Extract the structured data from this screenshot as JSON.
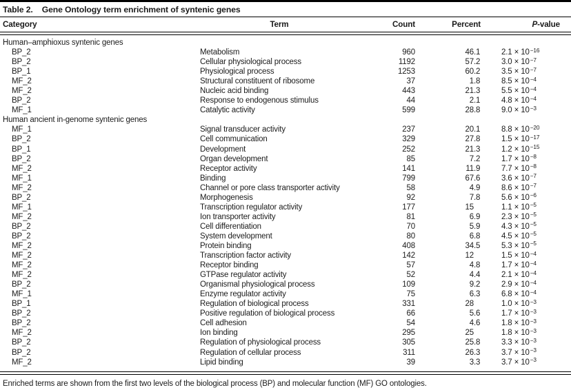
{
  "table": {
    "title_label": "Table 2.",
    "title_text": "Gene Ontology term enrichment of syntenic genes",
    "columns": {
      "category": "Category",
      "term": "Term",
      "count": "Count",
      "percent": "Percent",
      "pvalue_italic": "P",
      "pvalue_rest": "-value"
    },
    "sections": [
      {
        "header": "Human–amphioxus syntenic genes",
        "rows": [
          {
            "category": "BP_2",
            "term": "Metabolism",
            "count": "960",
            "percent": "46.1",
            "p_mant": "2.1",
            "p_exp": "−16"
          },
          {
            "category": "BP_2",
            "term": "Cellular physiological process",
            "count": "1192",
            "percent": "57.2",
            "p_mant": "3.0",
            "p_exp": "−7"
          },
          {
            "category": "BP_1",
            "term": "Physiological process",
            "count": "1253",
            "percent": "60.2",
            "p_mant": "3.5",
            "p_exp": "−7"
          },
          {
            "category": "MF_2",
            "term": "Structural constituent of ribosome",
            "count": "37",
            "percent": "1.8",
            "p_mant": "8.5",
            "p_exp": "−4"
          },
          {
            "category": "MF_2",
            "term": "Nucleic acid binding",
            "count": "443",
            "percent": "21.3",
            "p_mant": "5.5",
            "p_exp": "−4"
          },
          {
            "category": "BP_2",
            "term": "Response to endogenous stimulus",
            "count": "44",
            "percent": "2.1",
            "p_mant": "4.8",
            "p_exp": "−4"
          },
          {
            "category": "MF_1",
            "term": "Catalytic activity",
            "count": "599",
            "percent": "28.8",
            "p_mant": "9.0",
            "p_exp": "−3"
          }
        ]
      },
      {
        "header": "Human ancient in-genome syntenic genes",
        "rows": [
          {
            "category": "MF_1",
            "term": "Signal transducer activity",
            "count": "237",
            "percent": "20.1",
            "p_mant": "8.8",
            "p_exp": "−20"
          },
          {
            "category": "BP_2",
            "term": "Cell communication",
            "count": "329",
            "percent": "27.8",
            "p_mant": "1.5",
            "p_exp": "−17"
          },
          {
            "category": "BP_1",
            "term": "Development",
            "count": "252",
            "percent": "21.3",
            "p_mant": "1.2",
            "p_exp": "−15"
          },
          {
            "category": "BP_2",
            "term": "Organ development",
            "count": "85",
            "percent": "7.2",
            "p_mant": "1.7",
            "p_exp": "−8"
          },
          {
            "category": "MF_2",
            "term": "Receptor activity",
            "count": "141",
            "percent": "11.9",
            "p_mant": "7.7",
            "p_exp": "−8"
          },
          {
            "category": "MF_1",
            "term": "Binding",
            "count": "799",
            "percent": "67.6",
            "p_mant": "3.6",
            "p_exp": "−7"
          },
          {
            "category": "MF_2",
            "term": "Channel or pore class transporter activity",
            "count": "58",
            "percent": "4.9",
            "p_mant": "8.6",
            "p_exp": "−7"
          },
          {
            "category": "BP_2",
            "term": "Morphogenesis",
            "count": "92",
            "percent": "7.8",
            "p_mant": "5.6",
            "p_exp": "−6"
          },
          {
            "category": "MF_1",
            "term": "Transcription regulator activity",
            "count": "177",
            "percent": "15",
            "p_mant": "1.1",
            "p_exp": "−5"
          },
          {
            "category": "MF_2",
            "term": "Ion transporter activity",
            "count": "81",
            "percent": "6.9",
            "p_mant": "2.3",
            "p_exp": "−5"
          },
          {
            "category": "BP_2",
            "term": "Cell differentiation",
            "count": "70",
            "percent": "5.9",
            "p_mant": "4.3",
            "p_exp": "−5"
          },
          {
            "category": "BP_2",
            "term": "System development",
            "count": "80",
            "percent": "6.8",
            "p_mant": "4.5",
            "p_exp": "−5"
          },
          {
            "category": "MF_2",
            "term": "Protein binding",
            "count": "408",
            "percent": "34.5",
            "p_mant": "5.3",
            "p_exp": "−5"
          },
          {
            "category": "MF_2",
            "term": "Transcription factor activity",
            "count": "142",
            "percent": "12",
            "p_mant": "1.5",
            "p_exp": "−4"
          },
          {
            "category": "MF_2",
            "term": "Receptor binding",
            "count": "57",
            "percent": "4.8",
            "p_mant": "1.7",
            "p_exp": "−4"
          },
          {
            "category": "MF_2",
            "term": "GTPase regulator activity",
            "count": "52",
            "percent": "4.4",
            "p_mant": "2.1",
            "p_exp": "−4"
          },
          {
            "category": "BP_2",
            "term": "Organismal physiological process",
            "count": "109",
            "percent": "9.2",
            "p_mant": "2.9",
            "p_exp": "−4"
          },
          {
            "category": "MF_1",
            "term": "Enzyme regulator activity",
            "count": "75",
            "percent": "6.3",
            "p_mant": "6.8",
            "p_exp": "−4"
          },
          {
            "category": "BP_1",
            "term": "Regulation of biological process",
            "count": "331",
            "percent": "28",
            "p_mant": "1.0",
            "p_exp": "−3"
          },
          {
            "category": "BP_2",
            "term": "Positive regulation of biological process",
            "count": "66",
            "percent": "5.6",
            "p_mant": "1.7",
            "p_exp": "−3"
          },
          {
            "category": "BP_2",
            "term": "Cell adhesion",
            "count": "54",
            "percent": "4.6",
            "p_mant": "1.8",
            "p_exp": "−3"
          },
          {
            "category": "MF_2",
            "term": "Ion binding",
            "count": "295",
            "percent": "25",
            "p_mant": "1.8",
            "p_exp": "−3"
          },
          {
            "category": "BP_2",
            "term": "Regulation of physiological process",
            "count": "305",
            "percent": "25.8",
            "p_mant": "3.3",
            "p_exp": "−3"
          },
          {
            "category": "BP_2",
            "term": "Regulation of cellular process",
            "count": "311",
            "percent": "26.3",
            "p_mant": "3.7",
            "p_exp": "−3"
          },
          {
            "category": "MF_2",
            "term": "Lipid binding",
            "count": "39",
            "percent": "3.3",
            "p_mant": "3.7",
            "p_exp": "−3"
          }
        ]
      }
    ],
    "times_symbol": "×",
    "footnote": "Enriched terms are shown from the first two levels of the biological process (BP) and molecular function (MF) GO ontologies."
  }
}
